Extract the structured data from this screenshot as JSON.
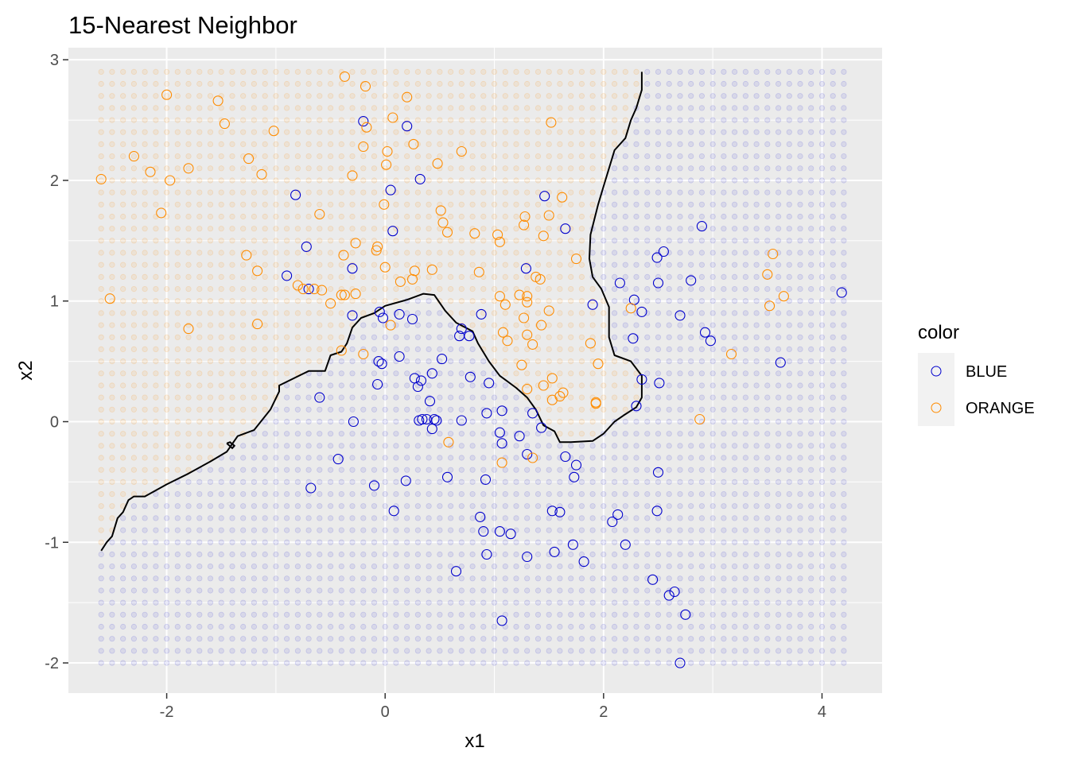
{
  "chart_data": {
    "type": "scatter",
    "title": "15-Nearest Neighbor",
    "xlabel": "x1",
    "ylabel": "x2",
    "xlim": [
      -2.9,
      4.55
    ],
    "ylim": [
      -2.25,
      3.1
    ],
    "x_ticks": [
      -2,
      0,
      2,
      4
    ],
    "x_tick_labels": [
      "-2",
      "0",
      "2",
      "4"
    ],
    "y_ticks": [
      -2,
      -1,
      0,
      1,
      2,
      3
    ],
    "y_tick_labels": [
      "-2",
      "-1",
      "0",
      "1",
      "2",
      "3"
    ],
    "grid": true,
    "legend": {
      "title": "color",
      "position": "right",
      "entries": [
        {
          "label": "BLUE",
          "color": "#0000cd"
        },
        {
          "label": "ORANGE",
          "color": "#ff8c00"
        }
      ]
    },
    "background_grid": {
      "x_range": [
        -2.6,
        4.2
      ],
      "y_range": [
        -2.0,
        2.9
      ],
      "step": 0.1
    },
    "decision_boundary": [
      [
        -2.6,
        -1.07
      ],
      [
        -2.55,
        -1.0
      ],
      [
        -2.5,
        -0.95
      ],
      [
        -2.45,
        -0.8
      ],
      [
        -2.4,
        -0.75
      ],
      [
        -2.35,
        -0.65
      ],
      [
        -2.3,
        -0.62
      ],
      [
        -2.2,
        -0.62
      ],
      [
        -2.0,
        -0.52
      ],
      [
        -1.8,
        -0.43
      ],
      [
        -1.6,
        -0.33
      ],
      [
        -1.45,
        -0.25
      ],
      [
        -1.35,
        -0.12
      ],
      [
        -1.2,
        -0.07
      ],
      [
        -1.05,
        0.1
      ],
      [
        -0.97,
        0.25
      ],
      [
        -0.97,
        0.3
      ],
      [
        -0.7,
        0.42
      ],
      [
        -0.55,
        0.42
      ],
      [
        -0.5,
        0.55
      ],
      [
        -0.4,
        0.58
      ],
      [
        -0.35,
        0.65
      ],
      [
        -0.3,
        0.78
      ],
      [
        -0.22,
        0.86
      ],
      [
        -0.1,
        0.9
      ],
      [
        0.0,
        0.96
      ],
      [
        0.2,
        1.01
      ],
      [
        0.35,
        1.06
      ],
      [
        0.45,
        1.05
      ],
      [
        0.55,
        0.92
      ],
      [
        0.65,
        0.82
      ],
      [
        0.8,
        0.75
      ],
      [
        0.85,
        0.65
      ],
      [
        0.95,
        0.5
      ],
      [
        1.05,
        0.38
      ],
      [
        1.2,
        0.28
      ],
      [
        1.3,
        0.2
      ],
      [
        1.38,
        0.1
      ],
      [
        1.45,
        -0.03
      ],
      [
        1.55,
        -0.08
      ],
      [
        1.6,
        -0.17
      ],
      [
        1.7,
        -0.17
      ],
      [
        1.9,
        -0.16
      ],
      [
        2.0,
        -0.1
      ],
      [
        2.1,
        0.0
      ],
      [
        2.18,
        0.05
      ],
      [
        2.3,
        0.12
      ],
      [
        2.35,
        0.2
      ],
      [
        2.35,
        0.38
      ],
      [
        2.25,
        0.5
      ],
      [
        2.1,
        0.55
      ],
      [
        2.05,
        0.7
      ],
      [
        2.05,
        0.95
      ],
      [
        1.98,
        1.1
      ],
      [
        1.9,
        1.2
      ],
      [
        1.87,
        1.35
      ],
      [
        1.88,
        1.55
      ],
      [
        1.95,
        1.8
      ],
      [
        2.0,
        1.95
      ],
      [
        2.05,
        2.1
      ],
      [
        2.1,
        2.25
      ],
      [
        2.2,
        2.35
      ],
      [
        2.25,
        2.5
      ],
      [
        2.3,
        2.6
      ],
      [
        2.35,
        2.75
      ],
      [
        2.35,
        2.9
      ]
    ],
    "boundary_island": [
      [
        -1.45,
        -0.18
      ],
      [
        -1.4,
        -0.22
      ],
      [
        -1.38,
        -0.2
      ],
      [
        -1.42,
        -0.17
      ],
      [
        -1.45,
        -0.18
      ]
    ],
    "series": [
      {
        "name": "BLUE",
        "color": "#0000cd",
        "points": [
          [
            -0.82,
            1.88
          ],
          [
            -0.72,
            1.45
          ],
          [
            -0.9,
            1.21
          ],
          [
            -0.7,
            1.1
          ],
          [
            -0.2,
            2.49
          ],
          [
            0.2,
            2.45
          ],
          [
            0.05,
            1.92
          ],
          [
            0.32,
            2.01
          ],
          [
            0.07,
            1.58
          ],
          [
            -0.3,
            1.27
          ],
          [
            -0.3,
            0.88
          ],
          [
            -0.05,
            0.91
          ],
          [
            -0.02,
            0.86
          ],
          [
            0.13,
            0.89
          ],
          [
            0.25,
            0.85
          ],
          [
            -0.06,
            0.5
          ],
          [
            -0.03,
            0.48
          ],
          [
            -0.07,
            0.31
          ],
          [
            0.13,
            0.54
          ],
          [
            0.27,
            0.36
          ],
          [
            0.33,
            0.34
          ],
          [
            0.3,
            0.29
          ],
          [
            0.43,
            0.4
          ],
          [
            0.52,
            0.52
          ],
          [
            0.34,
            0.02
          ],
          [
            0.38,
            0.02
          ],
          [
            0.31,
            0.01
          ],
          [
            0.45,
            0.02
          ],
          [
            0.47,
            0.01
          ],
          [
            0.43,
            -0.06
          ],
          [
            0.41,
            0.17
          ],
          [
            -0.6,
            0.2
          ],
          [
            -0.29,
            0.0
          ],
          [
            -0.43,
            -0.31
          ],
          [
            -0.68,
            -0.55
          ],
          [
            -0.1,
            -0.53
          ],
          [
            0.08,
            -0.74
          ],
          [
            0.19,
            -0.49
          ],
          [
            0.57,
            -0.46
          ],
          [
            0.7,
            0.01
          ],
          [
            0.78,
            0.37
          ],
          [
            0.88,
            0.89
          ],
          [
            0.93,
            0.07
          ],
          [
            0.95,
            0.32
          ],
          [
            1.05,
            -0.09
          ],
          [
            1.07,
            0.09
          ],
          [
            1.07,
            -0.18
          ],
          [
            1.23,
            -0.12
          ],
          [
            1.3,
            -0.27
          ],
          [
            1.35,
            0.07
          ],
          [
            1.43,
            -0.05
          ],
          [
            0.68,
            0.71
          ],
          [
            0.7,
            0.77
          ],
          [
            0.77,
            0.71
          ],
          [
            1.29,
            1.27
          ],
          [
            1.46,
            1.87
          ],
          [
            1.65,
            1.6
          ],
          [
            1.65,
            -0.29
          ],
          [
            1.75,
            -0.36
          ],
          [
            1.73,
            -0.46
          ],
          [
            0.92,
            -0.48
          ],
          [
            0.87,
            -0.79
          ],
          [
            0.9,
            -0.91
          ],
          [
            0.93,
            -1.1
          ],
          [
            1.05,
            -0.91
          ],
          [
            1.15,
            -0.93
          ],
          [
            1.3,
            -1.12
          ],
          [
            1.53,
            -0.74
          ],
          [
            1.55,
            -1.08
          ],
          [
            1.6,
            -0.75
          ],
          [
            1.72,
            -1.02
          ],
          [
            1.82,
            -1.16
          ],
          [
            0.65,
            -1.24
          ],
          [
            1.07,
            -1.65
          ],
          [
            1.9,
            0.97
          ],
          [
            2.08,
            -0.83
          ],
          [
            2.13,
            -0.77
          ],
          [
            2.2,
            -1.02
          ],
          [
            2.15,
            1.15
          ],
          [
            2.28,
            1.01
          ],
          [
            2.27,
            0.69
          ],
          [
            2.35,
            0.91
          ],
          [
            2.3,
            0.13
          ],
          [
            2.35,
            0.35
          ],
          [
            2.49,
            1.36
          ],
          [
            2.5,
            1.15
          ],
          [
            2.55,
            1.41
          ],
          [
            2.51,
            0.32
          ],
          [
            2.8,
            1.17
          ],
          [
            2.7,
            0.88
          ],
          [
            2.9,
            1.62
          ],
          [
            2.93,
            0.74
          ],
          [
            2.98,
            0.67
          ],
          [
            2.5,
            -0.42
          ],
          [
            2.49,
            -0.74
          ],
          [
            2.45,
            -1.31
          ],
          [
            2.6,
            -1.44
          ],
          [
            2.65,
            -1.41
          ],
          [
            2.75,
            -1.6
          ],
          [
            2.7,
            -2.0
          ],
          [
            3.62,
            0.49
          ],
          [
            4.18,
            1.07
          ]
        ]
      },
      {
        "name": "ORANGE",
        "color": "#ff8c00",
        "points": [
          [
            -2.6,
            2.01
          ],
          [
            -2.52,
            1.02
          ],
          [
            -2.3,
            2.2
          ],
          [
            -2.15,
            2.07
          ],
          [
            -2.05,
            1.73
          ],
          [
            -2.0,
            2.71
          ],
          [
            -1.97,
            2.0
          ],
          [
            -1.8,
            2.1
          ],
          [
            -1.8,
            0.77
          ],
          [
            -1.53,
            2.66
          ],
          [
            -1.47,
            2.47
          ],
          [
            -1.25,
            2.18
          ],
          [
            -1.27,
            1.38
          ],
          [
            -1.17,
            1.25
          ],
          [
            -1.17,
            0.81
          ],
          [
            -1.13,
            2.05
          ],
          [
            -1.02,
            2.41
          ],
          [
            -0.8,
            1.13
          ],
          [
            -0.75,
            1.1
          ],
          [
            -0.65,
            1.1
          ],
          [
            -0.6,
            1.72
          ],
          [
            -0.58,
            1.09
          ],
          [
            -0.5,
            0.98
          ],
          [
            -0.4,
            1.05
          ],
          [
            -0.37,
            1.05
          ],
          [
            -0.38,
            1.38
          ],
          [
            -0.27,
            1.48
          ],
          [
            -0.3,
            2.04
          ],
          [
            -0.37,
            2.86
          ],
          [
            -0.2,
            2.28
          ],
          [
            -0.17,
            2.44
          ],
          [
            -0.18,
            2.78
          ],
          [
            -0.27,
            1.06
          ],
          [
            -0.4,
            0.59
          ],
          [
            -0.2,
            0.56
          ],
          [
            -0.07,
            1.45
          ],
          [
            -0.08,
            1.42
          ],
          [
            0.0,
            1.28
          ],
          [
            -0.01,
            1.8
          ],
          [
            0.02,
            2.24
          ],
          [
            0.01,
            2.13
          ],
          [
            0.07,
            2.52
          ],
          [
            0.05,
            0.8
          ],
          [
            0.14,
            1.16
          ],
          [
            0.2,
            2.69
          ],
          [
            0.25,
            1.18
          ],
          [
            0.26,
            2.3
          ],
          [
            0.27,
            1.25
          ],
          [
            0.43,
            1.26
          ],
          [
            0.48,
            2.14
          ],
          [
            0.51,
            1.75
          ],
          [
            0.53,
            1.65
          ],
          [
            0.57,
            1.57
          ],
          [
            0.58,
            -0.17
          ],
          [
            0.7,
            2.24
          ],
          [
            0.82,
            1.56
          ],
          [
            0.86,
            1.24
          ],
          [
            1.03,
            1.55
          ],
          [
            1.05,
            1.49
          ],
          [
            1.05,
            1.04
          ],
          [
            1.08,
            0.74
          ],
          [
            1.1,
            0.97
          ],
          [
            1.12,
            0.67
          ],
          [
            1.07,
            -0.34
          ],
          [
            1.23,
            1.05
          ],
          [
            1.27,
            1.63
          ],
          [
            1.28,
            1.7
          ],
          [
            1.3,
            1.04
          ],
          [
            1.3,
            0.99
          ],
          [
            1.3,
            0.72
          ],
          [
            1.25,
            0.47
          ],
          [
            1.27,
            0.86
          ],
          [
            1.3,
            0.27
          ],
          [
            1.35,
            0.64
          ],
          [
            1.38,
            1.2
          ],
          [
            1.42,
            1.18
          ],
          [
            1.43,
            0.8
          ],
          [
            1.45,
            1.54
          ],
          [
            1.45,
            0.3
          ],
          [
            1.5,
            1.71
          ],
          [
            1.5,
            0.92
          ],
          [
            1.52,
            2.48
          ],
          [
            1.53,
            0.36
          ],
          [
            1.53,
            0.18
          ],
          [
            1.6,
            0.21
          ],
          [
            1.63,
            0.24
          ],
          [
            1.62,
            1.86
          ],
          [
            1.75,
            1.35
          ],
          [
            1.88,
            0.65
          ],
          [
            1.93,
            0.15
          ],
          [
            1.93,
            0.16
          ],
          [
            1.95,
            0.48
          ],
          [
            1.35,
            -0.3
          ],
          [
            2.25,
            0.94
          ],
          [
            2.88,
            0.02
          ],
          [
            3.17,
            0.56
          ],
          [
            3.5,
            1.22
          ],
          [
            3.52,
            0.96
          ],
          [
            3.55,
            1.39
          ],
          [
            3.65,
            1.04
          ]
        ]
      }
    ]
  }
}
